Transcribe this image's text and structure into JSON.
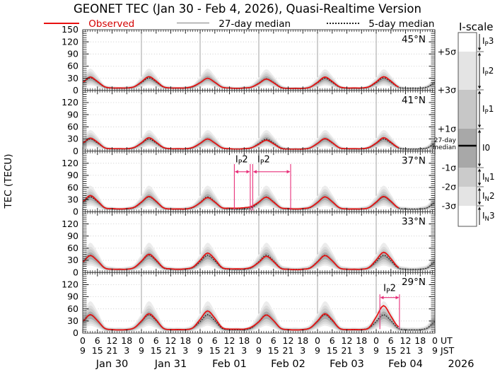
{
  "title": "GEONET TEC (Jan 30 - Feb 4, 2026), Quasi-Realtime Version",
  "legend": {
    "items": [
      {
        "label": "Observed",
        "style": "solid-red"
      },
      {
        "label": "27-day median",
        "style": "solid-gray"
      },
      {
        "label": "5-day median",
        "style": "dotted-black"
      }
    ]
  },
  "colors": {
    "observed": "#e81010",
    "median27": "#808080",
    "median5": "#111111",
    "annotation": "#e8307a",
    "grid_h": "#c3c3c3",
    "grid_day": "#a3a3a3",
    "spine": "#3a3a3a"
  },
  "axes": {
    "ylabel": "TEC (TECU)",
    "yticks": [
      0,
      30,
      60,
      90,
      120,
      150
    ],
    "ut_labels": [
      "0",
      "6",
      "12",
      "18"
    ],
    "jst_labels": [
      "9",
      "15",
      "21",
      "3"
    ],
    "ut_suffix": "UT",
    "jst_suffix": "JST",
    "dates": [
      "Jan 30",
      "Jan 31",
      "Feb 01",
      "Feb 02",
      "Feb 03",
      "Feb 04"
    ],
    "year": "2026"
  },
  "iscale": {
    "title": "I-scale",
    "sigma_labels": [
      "+5σ",
      "+3σ",
      "+1σ",
      "-1σ",
      "-2σ",
      "-3σ"
    ],
    "median_label_line1": "27-day",
    "median_label_line2": "median",
    "zones": [
      {
        "label": {
          "pre": "I",
          "sub": "P",
          "post": "3"
        },
        "color": "#ffffff"
      },
      {
        "label": {
          "pre": "I",
          "sub": "P",
          "post": "2"
        },
        "color": "#e4e4e4"
      },
      {
        "label": {
          "pre": "I",
          "sub": "P",
          "post": "1"
        },
        "color": "#c7c7c7"
      },
      {
        "label": {
          "pre": "I",
          "sub": "",
          "post": "0"
        },
        "color": "#a8a8a8"
      },
      {
        "label": {
          "pre": "I",
          "sub": "N",
          "post": "1"
        },
        "color": "#cbcbcb"
      },
      {
        "label": {
          "pre": "I",
          "sub": "N",
          "post": "2"
        },
        "color": "#e4e4e4"
      },
      {
        "label": {
          "pre": "I",
          "sub": "N",
          "post": "3"
        },
        "color": "#ffffff"
      }
    ]
  },
  "chart_data": {
    "type": "line",
    "x_unit": "hours UT starting Jan 30 2026 00:00",
    "x_step_hours": 3,
    "x_range_hours": [
      0,
      144
    ],
    "ylim": [
      0,
      150
    ],
    "yticks": [
      0,
      30,
      60,
      90,
      120,
      150
    ],
    "sigma_band_factors": {
      "plus": [
        1.22,
        1.4,
        1.56,
        1.8
      ],
      "minus": [
        0.8,
        0.66,
        0.54,
        0.42
      ],
      "band_colors": [
        "#ababab",
        "#cbcbcb",
        "#dcdcdc",
        "#ececec"
      ]
    },
    "panels": [
      {
        "label": "45°N",
        "observed": [
          20,
          33,
          22,
          9,
          6,
          6,
          6,
          9,
          21,
          34,
          23,
          9,
          6,
          6,
          6,
          10,
          19,
          30,
          20,
          8,
          6,
          5,
          6,
          8,
          17,
          28,
          19,
          7,
          5,
          5,
          5,
          8,
          20,
          33,
          22,
          9,
          6,
          6,
          6,
          9,
          21,
          34,
          23,
          9,
          null,
          null,
          null,
          null,
          null
        ],
        "median27": [
          19,
          30,
          20,
          8,
          6,
          5,
          6,
          8,
          19,
          30,
          20,
          8,
          6,
          5,
          6,
          8,
          19,
          30,
          20,
          8,
          6,
          5,
          6,
          8,
          18,
          29,
          20,
          8,
          5,
          5,
          5,
          8,
          18,
          29,
          20,
          8,
          5,
          5,
          5,
          8,
          18,
          29,
          20,
          8,
          5,
          5,
          5,
          8,
          18
        ],
        "median5": [
          19,
          31,
          21,
          8,
          6,
          6,
          6,
          9,
          19,
          31,
          21,
          8,
          6,
          6,
          6,
          9,
          19,
          30,
          20,
          8,
          6,
          5,
          6,
          8,
          18,
          29,
          20,
          8,
          5,
          5,
          5,
          8,
          19,
          30,
          20,
          8,
          6,
          5,
          6,
          8,
          19,
          31,
          21,
          8,
          6,
          6,
          6,
          9,
          19
        ],
        "annotations": []
      },
      {
        "label": "41°N",
        "observed": [
          20,
          32,
          22,
          8,
          6,
          6,
          6,
          9,
          20,
          33,
          22,
          9,
          6,
          6,
          6,
          9,
          19,
          30,
          20,
          8,
          6,
          5,
          6,
          8,
          17,
          27,
          18,
          7,
          5,
          5,
          5,
          8,
          19,
          31,
          21,
          8,
          6,
          6,
          6,
          9,
          20,
          33,
          22,
          9,
          null,
          null,
          null,
          null,
          null
        ],
        "median27": [
          18,
          29,
          20,
          8,
          5,
          5,
          5,
          8,
          18,
          29,
          20,
          8,
          5,
          5,
          5,
          8,
          18,
          29,
          20,
          8,
          5,
          5,
          5,
          8,
          18,
          29,
          20,
          8,
          5,
          5,
          5,
          8,
          18,
          29,
          20,
          8,
          5,
          5,
          5,
          8,
          18,
          29,
          20,
          8,
          5,
          5,
          5,
          8,
          18
        ],
        "median5": [
          19,
          30,
          20,
          8,
          6,
          5,
          6,
          8,
          19,
          30,
          20,
          8,
          6,
          5,
          6,
          8,
          19,
          30,
          20,
          8,
          6,
          5,
          6,
          8,
          19,
          30,
          20,
          8,
          6,
          5,
          6,
          8,
          19,
          30,
          20,
          8,
          6,
          5,
          6,
          8,
          19,
          30,
          20,
          8,
          6,
          5,
          6,
          8,
          19
        ],
        "annotations": []
      },
      {
        "label": "37°N",
        "observed": [
          25,
          40,
          27,
          10,
          8,
          7,
          8,
          11,
          24,
          38,
          26,
          10,
          7,
          7,
          7,
          11,
          22,
          35,
          24,
          10,
          9,
          9,
          10,
          13,
          24,
          36,
          24,
          10,
          8,
          7,
          8,
          11,
          23,
          37,
          25,
          10,
          7,
          7,
          7,
          10,
          24,
          38,
          26,
          10,
          null,
          null,
          null,
          null,
          null
        ],
        "median27": [
          22,
          36,
          24,
          9,
          7,
          6,
          7,
          10,
          22,
          36,
          24,
          9,
          7,
          6,
          7,
          10,
          22,
          36,
          24,
          9,
          7,
          6,
          7,
          10,
          22,
          36,
          24,
          9,
          7,
          6,
          7,
          10,
          22,
          36,
          24,
          9,
          7,
          6,
          7,
          10,
          22,
          36,
          24,
          9,
          7,
          6,
          7,
          10,
          22
        ],
        "median5": [
          23,
          37,
          25,
          10,
          7,
          7,
          7,
          10,
          23,
          37,
          25,
          10,
          7,
          7,
          7,
          10,
          23,
          37,
          25,
          10,
          7,
          7,
          7,
          10,
          23,
          37,
          25,
          10,
          7,
          7,
          7,
          10,
          23,
          37,
          25,
          10,
          7,
          7,
          7,
          10,
          23,
          37,
          25,
          10,
          7,
          7,
          7,
          10,
          23
        ],
        "annotations": [
          {
            "label": {
              "pre": "I",
              "sub": "P",
              "post": "2"
            },
            "start_h": 62,
            "end_h": 68.5,
            "label_h": 65,
            "line_top_tecu": 118,
            "line_bottom_tecu": 3,
            "arrow_tecu": 99,
            "label_tecu": 122
          },
          {
            "label": {
              "pre": "I",
              "sub": "P",
              "post": "2"
            },
            "start_h": 69.5,
            "end_h": 85,
            "label_h": 74,
            "line_top_tecu": 118,
            "line_bottom_tecu": 3,
            "arrow_tecu": 99,
            "label_tecu": 122
          }
        ]
      },
      {
        "label": "33°N",
        "observed": [
          26,
          42,
          29,
          11,
          8,
          8,
          8,
          12,
          28,
          45,
          31,
          12,
          9,
          8,
          9,
          13,
          30,
          48,
          33,
          12,
          9,
          9,
          9,
          13,
          25,
          40,
          27,
          10,
          8,
          7,
          8,
          11,
          26,
          42,
          29,
          11,
          8,
          8,
          8,
          12,
          31,
          50,
          34,
          13,
          null,
          null,
          null,
          null,
          null
        ],
        "median27": [
          25,
          41,
          28,
          11,
          8,
          7,
          8,
          11,
          25,
          41,
          28,
          11,
          8,
          7,
          8,
          11,
          25,
          41,
          28,
          11,
          8,
          7,
          8,
          11,
          25,
          41,
          28,
          11,
          8,
          7,
          8,
          11,
          25,
          41,
          28,
          11,
          8,
          7,
          8,
          11,
          25,
          41,
          28,
          11,
          8,
          7,
          8,
          11,
          25
        ],
        "median5": [
          27,
          43,
          29,
          11,
          8,
          8,
          8,
          12,
          27,
          43,
          29,
          11,
          8,
          8,
          8,
          12,
          27,
          43,
          29,
          11,
          8,
          8,
          8,
          12,
          27,
          43,
          29,
          11,
          8,
          8,
          8,
          12,
          27,
          43,
          29,
          11,
          8,
          8,
          8,
          12,
          27,
          43,
          29,
          11,
          8,
          8,
          8,
          12,
          27
        ],
        "annotations": []
      },
      {
        "label": "29°N",
        "observed": [
          29,
          46,
          31,
          12,
          9,
          8,
          9,
          13,
          30,
          48,
          33,
          12,
          9,
          9,
          9,
          13,
          34,
          55,
          37,
          14,
          10,
          10,
          10,
          15,
          28,
          45,
          31,
          12,
          9,
          8,
          9,
          13,
          30,
          48,
          33,
          12,
          9,
          9,
          9,
          13,
          40,
          68,
          42,
          16,
          null,
          null,
          null,
          null,
          null
        ],
        "median27": [
          27,
          44,
          30,
          11,
          8,
          8,
          8,
          12,
          27,
          44,
          30,
          11,
          8,
          8,
          8,
          12,
          27,
          44,
          30,
          11,
          8,
          8,
          8,
          12,
          27,
          44,
          30,
          11,
          8,
          8,
          8,
          12,
          27,
          44,
          30,
          11,
          8,
          8,
          8,
          12,
          27,
          44,
          30,
          11,
          8,
          8,
          8,
          12,
          27
        ],
        "median5": [
          29,
          46,
          31,
          12,
          9,
          8,
          9,
          13,
          29,
          46,
          31,
          12,
          9,
          8,
          9,
          13,
          29,
          46,
          31,
          12,
          9,
          8,
          9,
          13,
          29,
          46,
          31,
          12,
          9,
          8,
          9,
          13,
          29,
          46,
          31,
          12,
          9,
          8,
          9,
          13,
          29,
          46,
          31,
          12,
          9,
          8,
          9,
          13,
          29
        ],
        "annotations": [
          {
            "label": {
              "pre": "I",
              "sub": "P",
              "post": "2"
            },
            "start_h": 121.5,
            "end_h": 129.5,
            "label_h": 125.5,
            "line_top_tecu": 96,
            "line_bottom_tecu": 10,
            "arrow_tecu": 88,
            "label_tecu": 104
          }
        ]
      }
    ]
  }
}
